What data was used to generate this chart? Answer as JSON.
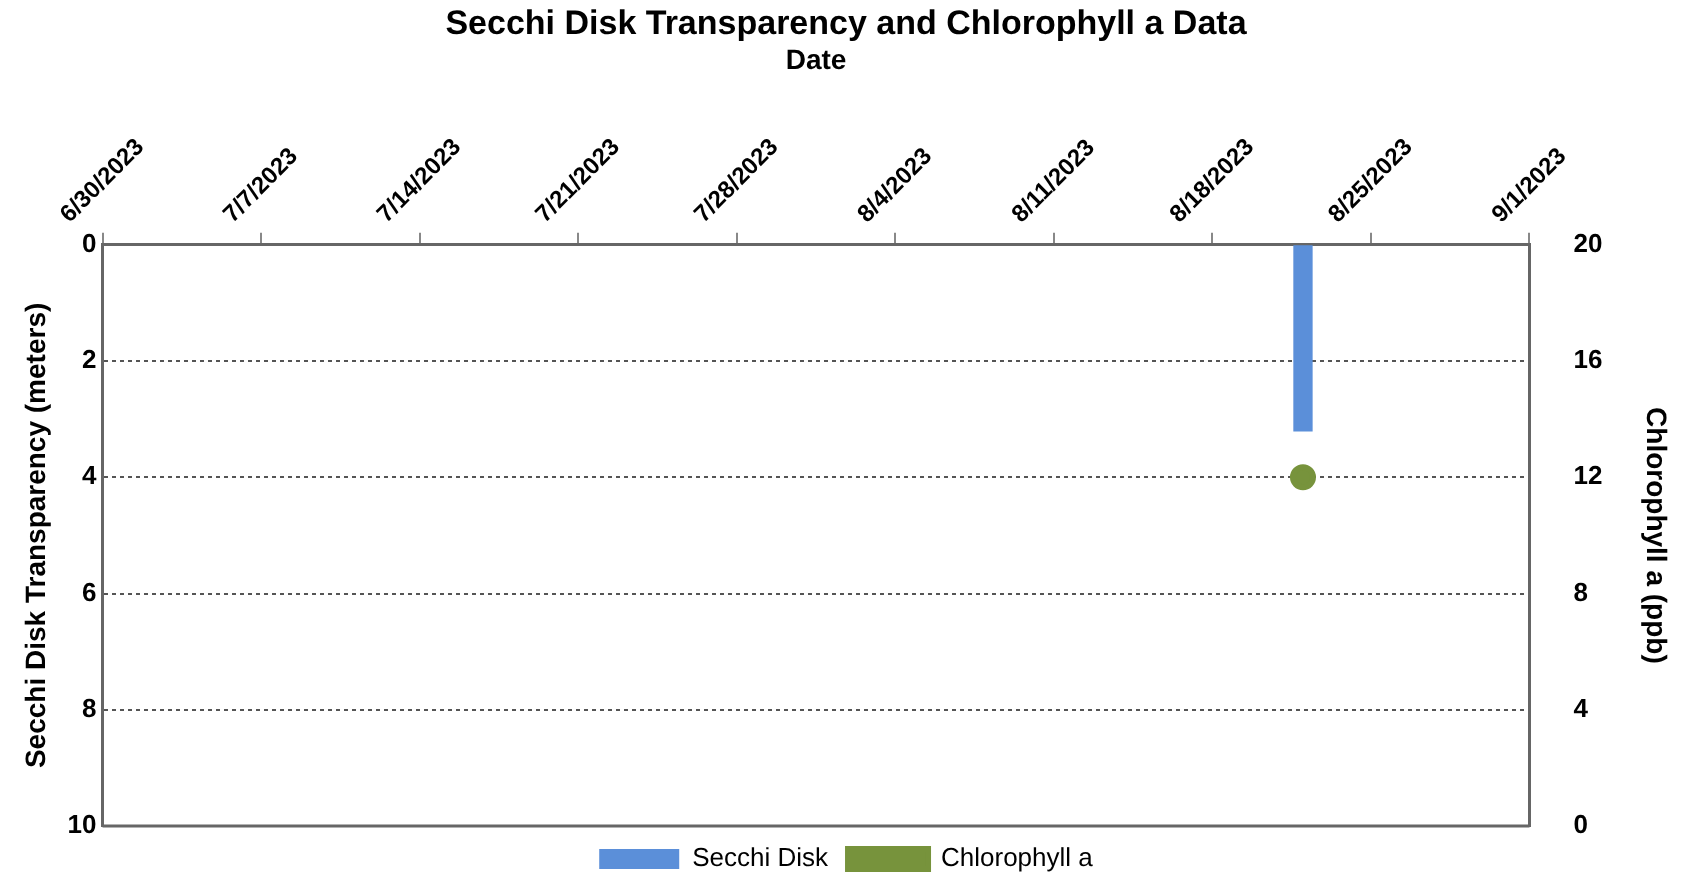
{
  "chart_data": {
    "type": "bar",
    "title": "Secchi Disk Transparency and Chlorophyll a Data",
    "xlabel": "Date",
    "ylabel": "Secchi Disk Transparency (meters)",
    "y2label": "Chlorophyll a (ppb)",
    "xlim": [
      "2023-06-30",
      "2023-09-01"
    ],
    "xticks": [
      {
        "value": "2023-06-30",
        "label": "6/30/2023"
      },
      {
        "value": "2023-07-07",
        "label": "7/7/2023"
      },
      {
        "value": "2023-07-14",
        "label": "7/14/2023"
      },
      {
        "value": "2023-07-21",
        "label": "7/21/2023"
      },
      {
        "value": "2023-07-28",
        "label": "7/28/2023"
      },
      {
        "value": "2023-08-04",
        "label": "8/4/2023"
      },
      {
        "value": "2023-08-11",
        "label": "8/11/2023"
      },
      {
        "value": "2023-08-18",
        "label": "8/18/2023"
      },
      {
        "value": "2023-08-25",
        "label": "8/25/2023"
      },
      {
        "value": "2023-09-01",
        "label": "9/1/2023"
      }
    ],
    "ylim": [
      10,
      0
    ],
    "yticks": [
      0,
      2,
      4,
      6,
      8,
      10
    ],
    "y2lim": [
      0,
      20
    ],
    "y2ticks": [
      0,
      4,
      8,
      12,
      16,
      20
    ],
    "grid": "y",
    "legend": "bottom",
    "marker": "circle",
    "series": [
      {
        "name": "Secchi Disk",
        "color": "#5b8fd9",
        "x": [
          "2023-08-22"
        ],
        "values": [
          3.2
        ]
      },
      {
        "name": "Chlorophyll a",
        "type": "line",
        "axis": "y2",
        "color": "#77933c",
        "x": [
          "2023-08-22"
        ],
        "values": [
          12
        ]
      }
    ]
  }
}
